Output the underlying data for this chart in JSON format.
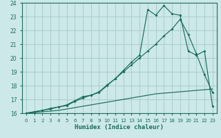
{
  "xlabel": "Humidex (Indice chaleur)",
  "bg_color": "#cce8e8",
  "grid_color": "#aacccc",
  "line_color": "#1a6b5e",
  "xlim": [
    -0.5,
    23.5
  ],
  "ylim": [
    16,
    24
  ],
  "xticks": [
    0,
    1,
    2,
    3,
    4,
    5,
    6,
    7,
    8,
    9,
    10,
    11,
    12,
    13,
    14,
    15,
    16,
    17,
    18,
    19,
    20,
    21,
    22,
    23
  ],
  "yticks": [
    16,
    17,
    18,
    19,
    20,
    21,
    22,
    23,
    24
  ],
  "series_flat_x": [
    0,
    1,
    2,
    3,
    4,
    5,
    6,
    7,
    8,
    9,
    10,
    11,
    12,
    13,
    14,
    15,
    16,
    17,
    18,
    19,
    20,
    21,
    22,
    23
  ],
  "series_flat_y": [
    16.0,
    16.05,
    16.1,
    16.15,
    16.2,
    16.3,
    16.4,
    16.5,
    16.6,
    16.7,
    16.8,
    16.9,
    17.0,
    17.1,
    17.2,
    17.3,
    17.4,
    17.45,
    17.5,
    17.55,
    17.6,
    17.65,
    17.7,
    17.75
  ],
  "series_mid_x": [
    0,
    1,
    2,
    3,
    4,
    5,
    6,
    7,
    8,
    9,
    10,
    11,
    12,
    13,
    14,
    15,
    16,
    17,
    18,
    19,
    20,
    21,
    22,
    23
  ],
  "series_mid_y": [
    16.0,
    16.1,
    16.2,
    16.35,
    16.45,
    16.6,
    16.9,
    17.2,
    17.3,
    17.55,
    18.05,
    18.5,
    19.0,
    19.5,
    20.0,
    20.5,
    21.0,
    21.6,
    22.1,
    22.8,
    21.7,
    20.3,
    18.8,
    17.5
  ],
  "series_top_x": [
    0,
    1,
    2,
    3,
    4,
    5,
    6,
    7,
    8,
    9,
    10,
    11,
    12,
    13,
    14,
    15,
    16,
    17,
    18,
    19,
    20,
    21,
    22,
    23
  ],
  "series_top_y": [
    16.0,
    16.1,
    16.2,
    16.3,
    16.45,
    16.55,
    16.85,
    17.1,
    17.3,
    17.5,
    18.0,
    18.5,
    19.1,
    19.7,
    20.2,
    23.5,
    23.1,
    23.8,
    23.2,
    23.1,
    20.5,
    20.2,
    20.5,
    16.5
  ]
}
